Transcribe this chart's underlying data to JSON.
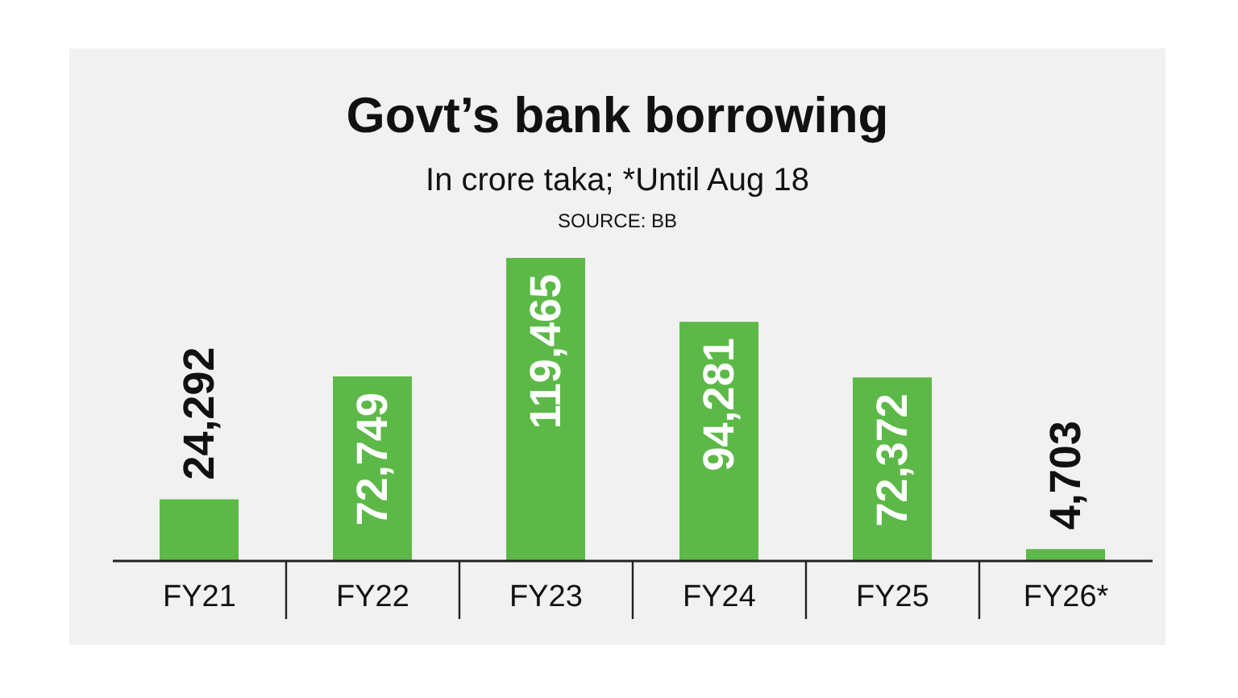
{
  "chart_data": {
    "type": "bar",
    "title": "Govt’s bank borrowing",
    "subtitle": "In crore taka; *Until Aug 18",
    "annotations": [
      "SOURCE: BB"
    ],
    "categories": [
      "FY21",
      "FY22",
      "FY23",
      "FY24",
      "FY25",
      "FY26*"
    ],
    "values": [
      24292,
      72749,
      119465,
      94281,
      72372,
      4703
    ],
    "value_labels": [
      "24,292",
      "72,749",
      "119,465",
      "94,281",
      "72,372",
      "4,703"
    ],
    "color": "#5cb947",
    "grid": false,
    "legend": false
  }
}
